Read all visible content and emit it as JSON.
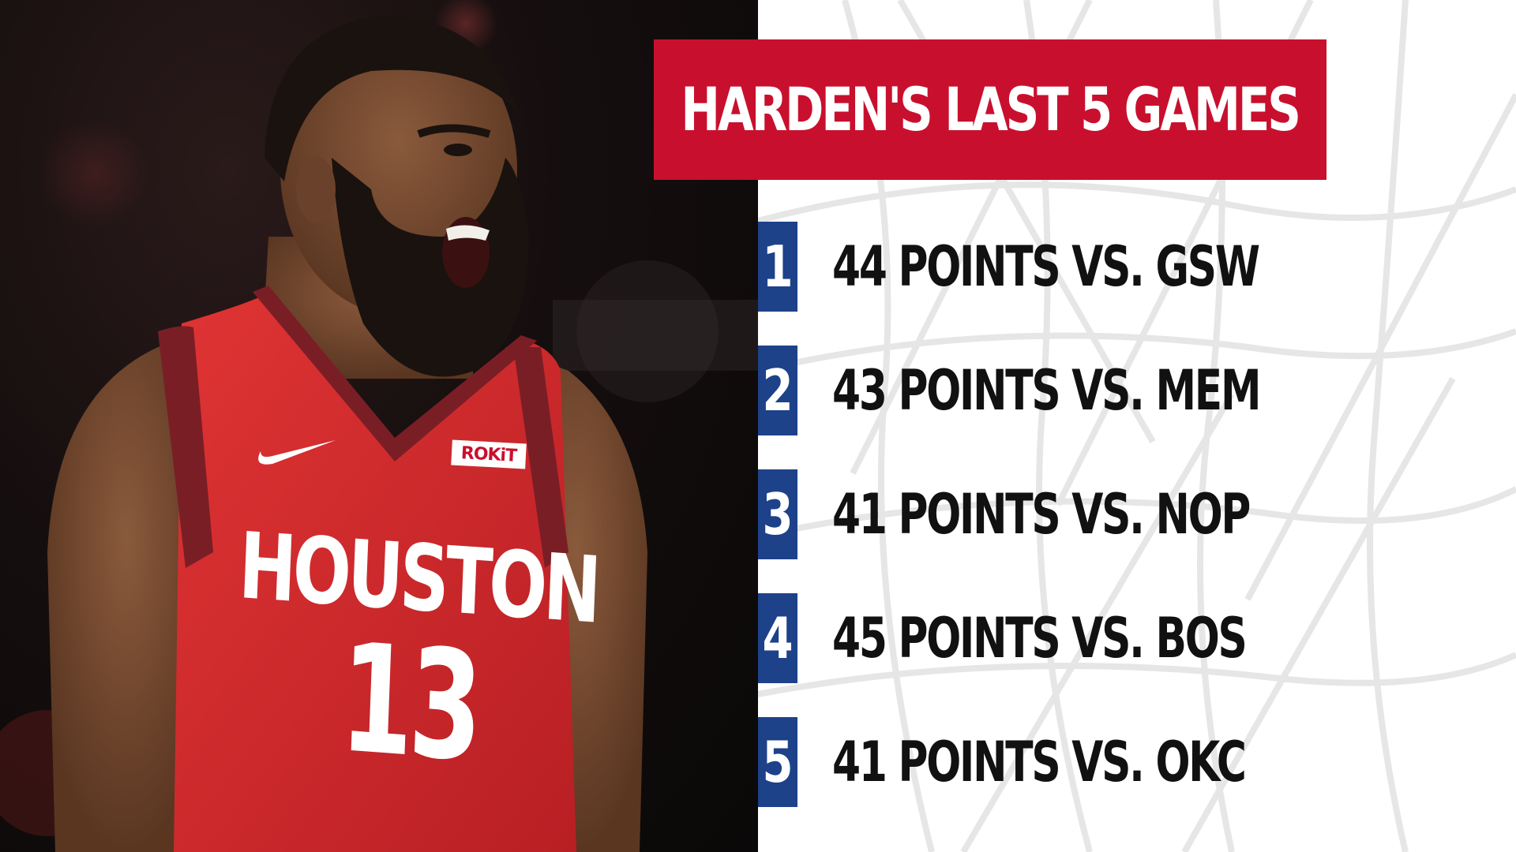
{
  "title": "HARDEN'S LAST 5 GAMES",
  "games": [
    {
      "rank": "1",
      "text": "44 POINTS VS. GSW"
    },
    {
      "rank": "2",
      "text": "43 POINTS VS. MEM"
    },
    {
      "rank": "3",
      "text": "41 POINTS VS. NOP"
    },
    {
      "rank": "4",
      "text": "45 POINTS VS. BOS"
    },
    {
      "rank": "5",
      "text": "41 POINTS VS. OKC"
    }
  ],
  "photo": {
    "jersey_city": "HOUSTON",
    "jersey_number": "13",
    "jersey_sponsor": "ROKiT",
    "icons": [
      "swoosh-logo-icon"
    ]
  },
  "colors": {
    "title_banner": "#c8102e",
    "rank_box": "#1d428a",
    "jersey_red": "#d52b2b",
    "jersey_trim": "#7a1e26",
    "net_lines": "#e6e6e6",
    "text": "#111111"
  }
}
